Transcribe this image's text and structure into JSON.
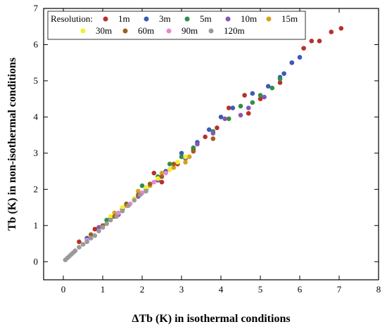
{
  "chart_data": {
    "type": "scatter",
    "xlabel": "ΔTb (K) in isothermal conditions",
    "ylabel": "Tb (K) in non-isothermal conditions",
    "xlim": [
      -0.5,
      8
    ],
    "ylim": [
      -0.5,
      7
    ],
    "xticks": [
      "0",
      "1",
      "2",
      "3",
      "4",
      "5",
      "6",
      "7",
      "8"
    ],
    "yticks": [
      "0",
      "1",
      "2",
      "3",
      "4",
      "5",
      "6",
      "7"
    ],
    "grid": false,
    "legend": {
      "placement": "top-left",
      "title": "Resolution:",
      "columns": 5
    },
    "series": [
      {
        "name": "1m",
        "color": "#b5322a",
        "points": [
          [
            0.4,
            0.55
          ],
          [
            0.8,
            0.9
          ],
          [
            1.2,
            1.2
          ],
          [
            1.6,
            1.55
          ],
          [
            2.0,
            1.9
          ],
          [
            2.3,
            2.45
          ],
          [
            2.5,
            2.2
          ],
          [
            2.9,
            2.7
          ],
          [
            3.3,
            3.1
          ],
          [
            3.6,
            3.45
          ],
          [
            3.9,
            3.7
          ],
          [
            4.2,
            4.25
          ],
          [
            4.6,
            4.6
          ],
          [
            4.7,
            4.1
          ],
          [
            5.0,
            4.5
          ],
          [
            5.5,
            4.95
          ],
          [
            5.8,
            5.5
          ],
          [
            6.1,
            5.9
          ],
          [
            6.3,
            6.1
          ],
          [
            6.5,
            6.1
          ],
          [
            6.8,
            6.35
          ],
          [
            7.05,
            6.45
          ]
        ]
      },
      {
        "name": "3m",
        "color": "#3a5bb8",
        "points": [
          [
            0.6,
            0.65
          ],
          [
            1.0,
            0.95
          ],
          [
            1.5,
            1.45
          ],
          [
            2.1,
            2.0
          ],
          [
            2.6,
            2.5
          ],
          [
            3.0,
            3.0
          ],
          [
            3.4,
            3.3
          ],
          [
            3.7,
            3.65
          ],
          [
            4.0,
            4.0
          ],
          [
            4.3,
            4.25
          ],
          [
            4.8,
            4.65
          ],
          [
            5.2,
            4.85
          ],
          [
            5.5,
            5.1
          ],
          [
            5.6,
            5.2
          ],
          [
            5.8,
            5.5
          ],
          [
            6.0,
            5.65
          ]
        ]
      },
      {
        "name": "5m",
        "color": "#2f8f4a",
        "points": [
          [
            1.1,
            1.15
          ],
          [
            1.5,
            1.45
          ],
          [
            2.0,
            2.1
          ],
          [
            2.4,
            2.35
          ],
          [
            2.7,
            2.7
          ],
          [
            3.0,
            2.9
          ],
          [
            3.3,
            3.15
          ],
          [
            3.8,
            3.6
          ],
          [
            4.2,
            3.95
          ],
          [
            4.5,
            4.3
          ],
          [
            4.8,
            4.4
          ],
          [
            5.0,
            4.6
          ],
          [
            5.3,
            4.8
          ],
          [
            5.5,
            5.05
          ]
        ]
      },
      {
        "name": "10m",
        "color": "#8a56b0",
        "points": [
          [
            0.9,
            0.95
          ],
          [
            1.4,
            1.3
          ],
          [
            1.9,
            1.8
          ],
          [
            2.4,
            2.25
          ],
          [
            2.7,
            2.55
          ],
          [
            3.1,
            2.85
          ],
          [
            3.4,
            3.25
          ],
          [
            3.8,
            3.55
          ],
          [
            4.1,
            3.95
          ],
          [
            4.5,
            4.05
          ],
          [
            4.7,
            4.25
          ],
          [
            5.1,
            4.55
          ]
        ]
      },
      {
        "name": "15m",
        "color": "#d6a21e",
        "points": [
          [
            1.3,
            1.35
          ],
          [
            1.6,
            1.55
          ],
          [
            1.9,
            1.95
          ],
          [
            2.2,
            2.1
          ],
          [
            2.5,
            2.45
          ],
          [
            2.8,
            2.6
          ],
          [
            3.1,
            2.75
          ],
          [
            3.2,
            2.9
          ]
        ]
      },
      {
        "name": "30m",
        "color": "#f4ef2a",
        "points": [
          [
            1.2,
            1.25
          ],
          [
            1.5,
            1.5
          ],
          [
            1.8,
            1.75
          ],
          [
            2.1,
            2.05
          ],
          [
            2.4,
            2.3
          ],
          [
            2.7,
            2.55
          ],
          [
            2.9,
            2.75
          ],
          [
            3.1,
            2.9
          ]
        ]
      },
      {
        "name": "60m",
        "color": "#9a6020",
        "points": [
          [
            0.7,
            0.75
          ],
          [
            1.0,
            1.0
          ],
          [
            1.3,
            1.25
          ],
          [
            1.6,
            1.6
          ],
          [
            1.9,
            1.85
          ],
          [
            2.2,
            2.15
          ],
          [
            2.5,
            2.35
          ],
          [
            2.8,
            2.7
          ],
          [
            3.3,
            3.05
          ],
          [
            3.8,
            3.4
          ]
        ]
      },
      {
        "name": "90m",
        "color": "#e58ad2",
        "points": [
          [
            0.3,
            0.3
          ],
          [
            0.6,
            0.6
          ],
          [
            0.9,
            0.85
          ],
          [
            1.1,
            1.05
          ],
          [
            1.4,
            1.35
          ],
          [
            1.7,
            1.6
          ],
          [
            2.0,
            1.9
          ],
          [
            2.3,
            2.2
          ],
          [
            2.6,
            2.45
          ]
        ]
      },
      {
        "name": "120m",
        "color": "#9a9a9a",
        "points": [
          [
            0.05,
            0.05
          ],
          [
            0.1,
            0.1
          ],
          [
            0.15,
            0.15
          ],
          [
            0.2,
            0.2
          ],
          [
            0.25,
            0.25
          ],
          [
            0.3,
            0.3
          ],
          [
            0.4,
            0.4
          ],
          [
            0.5,
            0.48
          ],
          [
            0.6,
            0.55
          ],
          [
            0.7,
            0.65
          ],
          [
            0.8,
            0.72
          ],
          [
            0.9,
            0.85
          ],
          [
            1.0,
            0.95
          ],
          [
            1.1,
            1.05
          ],
          [
            1.2,
            1.15
          ],
          [
            1.35,
            1.25
          ],
          [
            1.5,
            1.4
          ],
          [
            1.65,
            1.55
          ],
          [
            1.8,
            1.7
          ],
          [
            1.95,
            1.85
          ],
          [
            2.1,
            1.95
          ]
        ]
      }
    ]
  }
}
